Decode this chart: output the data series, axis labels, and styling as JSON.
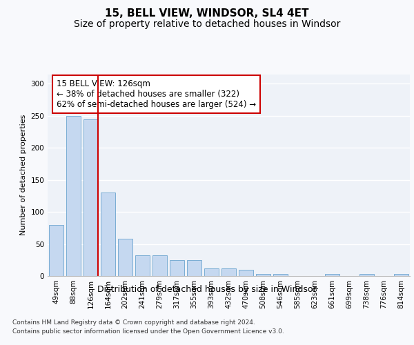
{
  "title1": "15, BELL VIEW, WINDSOR, SL4 4ET",
  "title2": "Size of property relative to detached houses in Windsor",
  "xlabel": "Distribution of detached houses by size in Windsor",
  "ylabel": "Number of detached properties",
  "categories": [
    "49sqm",
    "88sqm",
    "126sqm",
    "164sqm",
    "202sqm",
    "241sqm",
    "279sqm",
    "317sqm",
    "355sqm",
    "393sqm",
    "432sqm",
    "470sqm",
    "508sqm",
    "546sqm",
    "585sqm",
    "623sqm",
    "661sqm",
    "699sqm",
    "738sqm",
    "776sqm",
    "814sqm"
  ],
  "values": [
    80,
    250,
    245,
    130,
    58,
    32,
    32,
    25,
    25,
    12,
    12,
    10,
    3,
    3,
    0,
    0,
    3,
    0,
    3,
    0,
    3
  ],
  "bar_color": "#c5d8f0",
  "bar_edge_color": "#7aadd4",
  "highlight_index": 2,
  "highlight_color": "#cc0000",
  "annotation_text": "15 BELL VIEW: 126sqm\n← 38% of detached houses are smaller (322)\n62% of semi-detached houses are larger (524) →",
  "annotation_box_facecolor": "#ffffff",
  "annotation_box_edgecolor": "#cc0000",
  "ylim": [
    0,
    315
  ],
  "yticks": [
    0,
    50,
    100,
    150,
    200,
    250,
    300
  ],
  "footnote_line1": "Contains HM Land Registry data © Crown copyright and database right 2024.",
  "footnote_line2": "Contains public sector information licensed under the Open Government Licence v3.0.",
  "bg_color": "#eef2f8",
  "fig_bg_color": "#f8f9fc",
  "grid_color": "#ffffff",
  "title1_fontsize": 11,
  "title2_fontsize": 10,
  "xlabel_fontsize": 9,
  "ylabel_fontsize": 8,
  "tick_fontsize": 7.5,
  "annot_fontsize": 8.5,
  "footnote_fontsize": 6.5
}
